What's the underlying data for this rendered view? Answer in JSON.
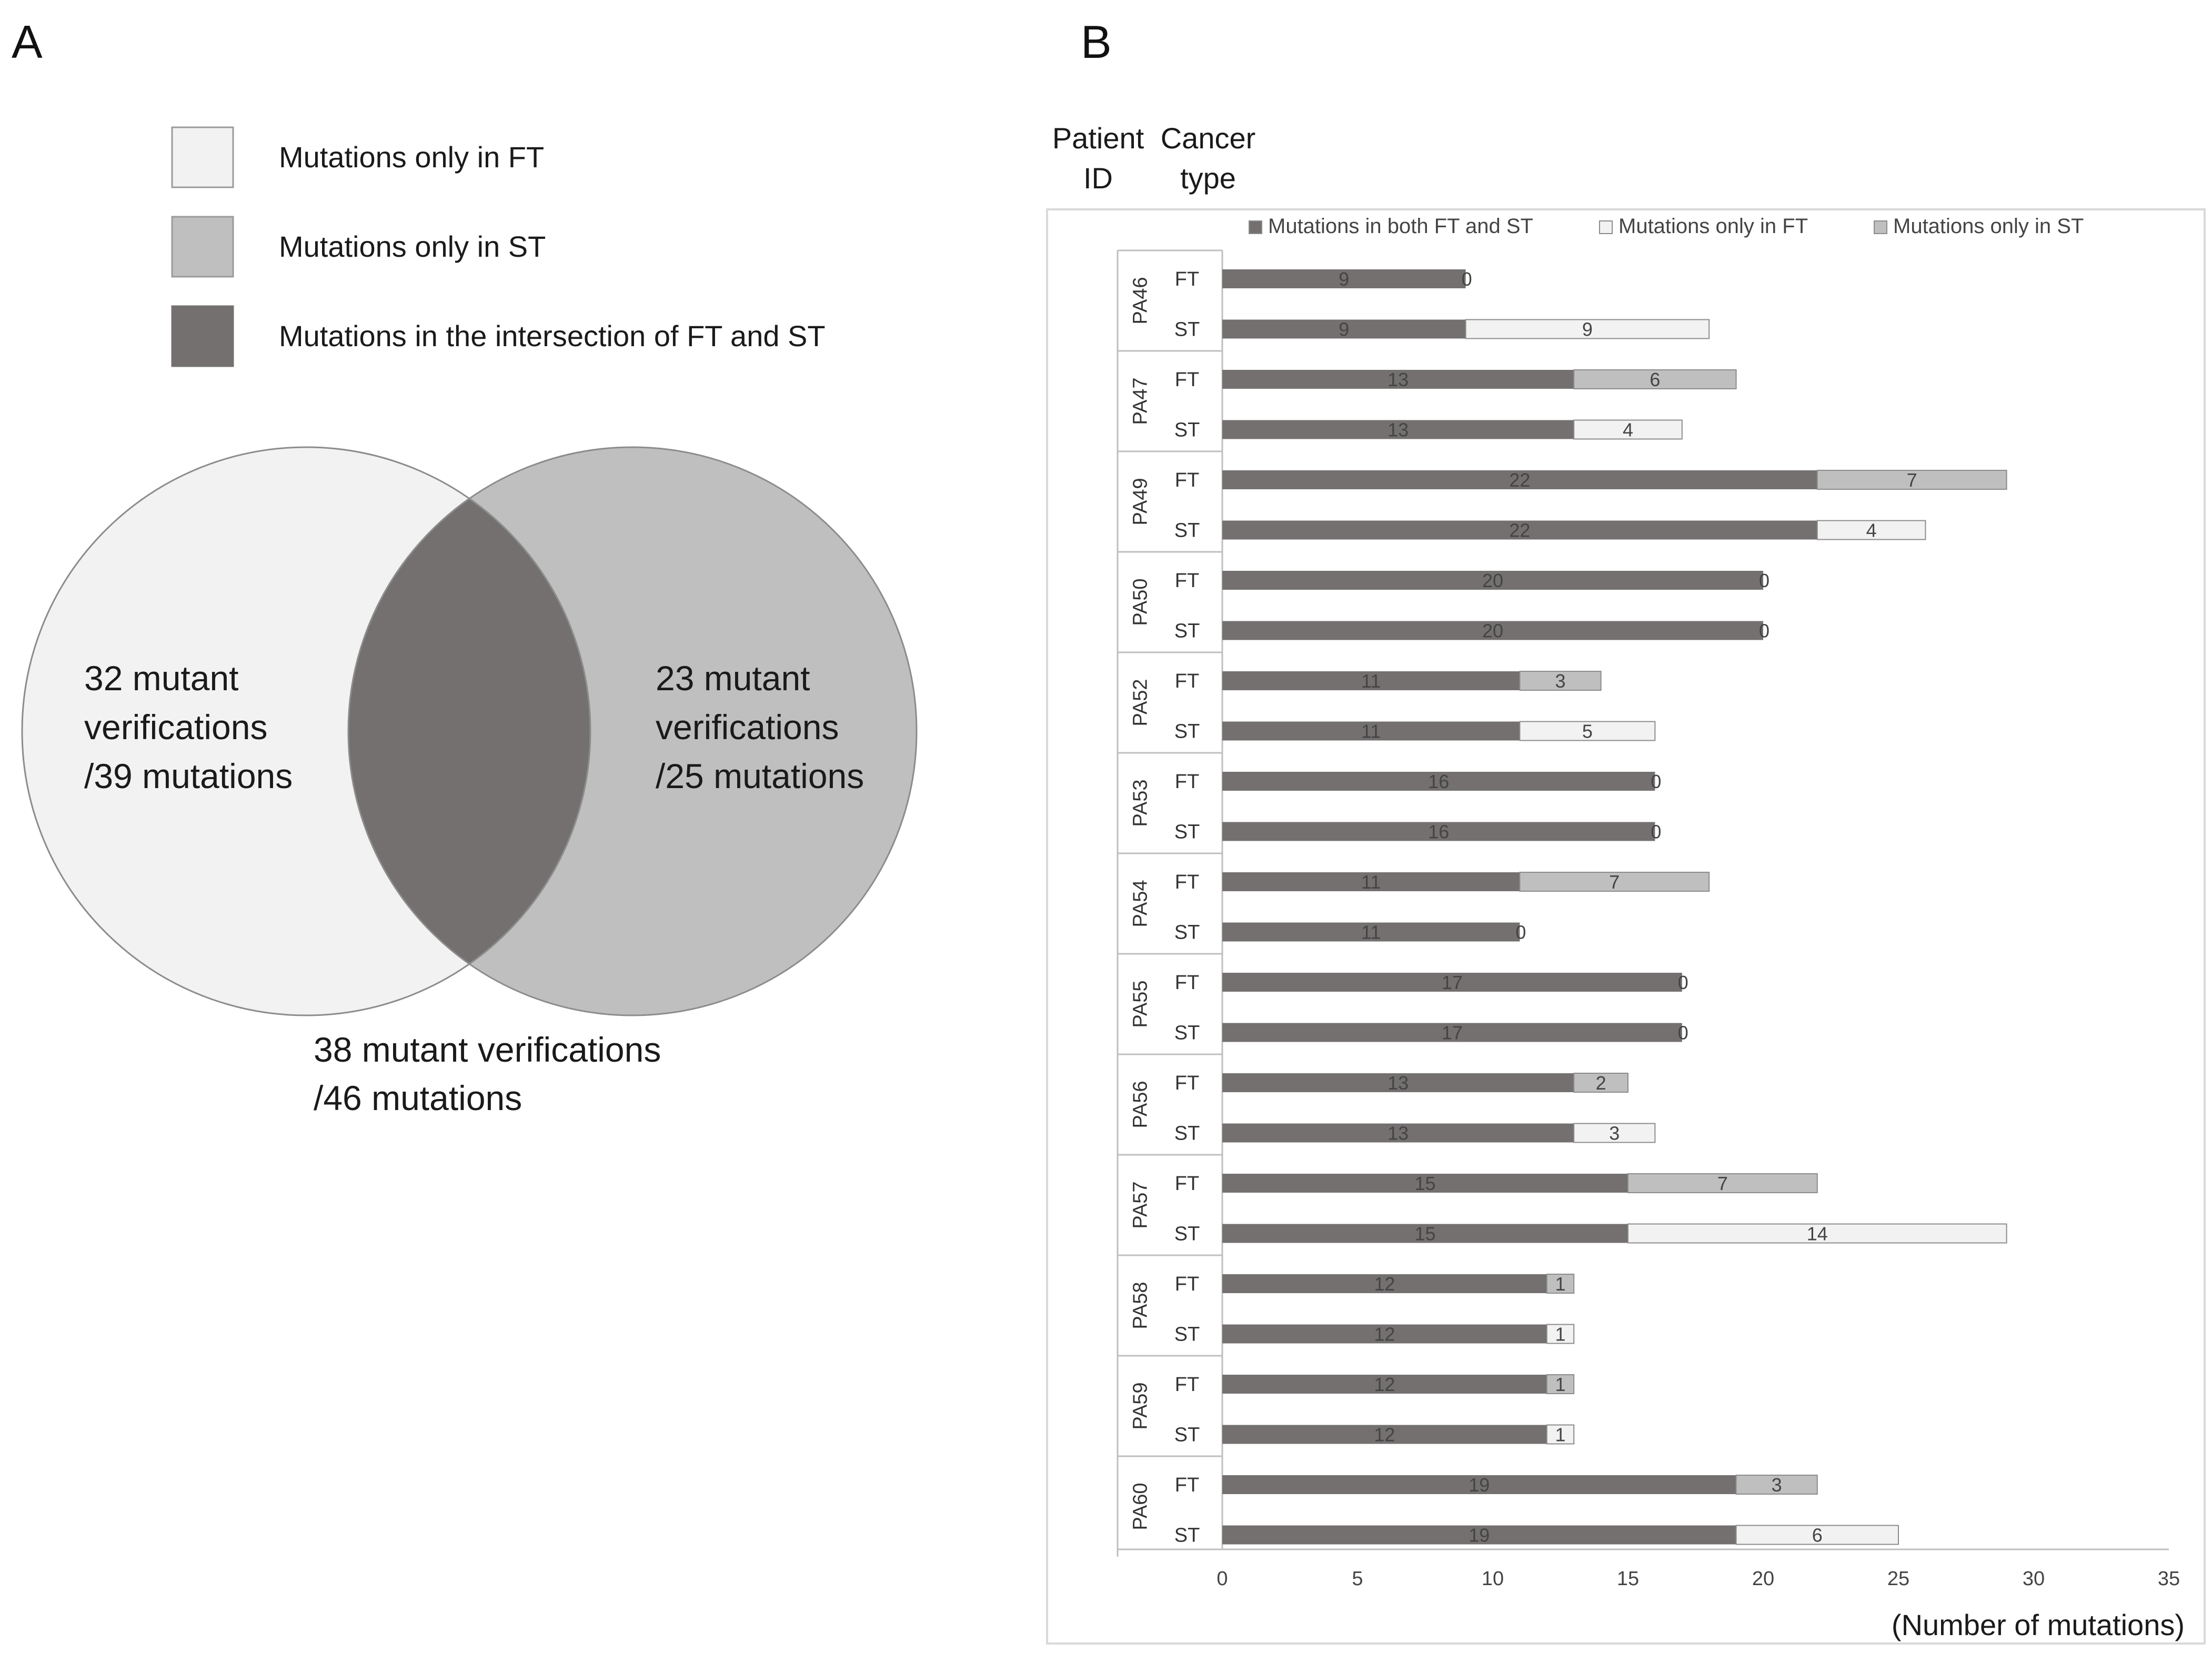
{
  "panel_a": {
    "letter": "A",
    "legend": [
      {
        "label": "Mutations only in FT",
        "color": "#f2f2f2"
      },
      {
        "label": "Mutations only in ST",
        "color": "#bfbfbf"
      },
      {
        "label": "Mutations in the intersection of FT and ST",
        "color": "#747070"
      }
    ],
    "venn": {
      "left_lines": [
        "32 mutant",
        "verifications",
        "/39 mutations"
      ],
      "right_lines": [
        "23 mutant",
        "verifications",
        "/25 mutations"
      ],
      "bottom_lines": [
        "38 mutant verifications",
        "/46 mutations"
      ],
      "colors": {
        "left": "#f2f2f2",
        "right": "#bfbfbf",
        "intersection": "#747070",
        "stroke": "#8c8c8c"
      }
    }
  },
  "panel_b": {
    "letter": "B",
    "header_patient": [
      "Patient",
      "ID"
    ],
    "header_cancer": [
      "Cancer",
      "type"
    ]
  },
  "chart_data": {
    "type": "bar",
    "orientation": "horizontal",
    "stacked": true,
    "legend_position": "top",
    "xlabel": "(Number of mutations)",
    "xlim": [
      0,
      35
    ],
    "xticks": [
      0,
      5,
      10,
      15,
      20,
      25,
      30,
      35
    ],
    "series": [
      {
        "name": "Mutations in both FT and ST",
        "color": "#747070"
      },
      {
        "name": "Mutations only in FT",
        "color": "#f2f2f2"
      },
      {
        "name": "Mutations only in ST",
        "color": "#bfbfbf"
      }
    ],
    "patients": [
      {
        "id": "PA46",
        "rows": [
          {
            "type": "FT",
            "both": 9,
            "only_ft": 0,
            "only_st": 0
          },
          {
            "type": "ST",
            "both": 9,
            "only_ft": 9,
            "only_st": 0
          }
        ]
      },
      {
        "id": "PA47",
        "rows": [
          {
            "type": "FT",
            "both": 13,
            "only_ft": 0,
            "only_st": 6
          },
          {
            "type": "ST",
            "both": 13,
            "only_ft": 4,
            "only_st": 0
          }
        ]
      },
      {
        "id": "PA49",
        "rows": [
          {
            "type": "FT",
            "both": 22,
            "only_ft": 0,
            "only_st": 7
          },
          {
            "type": "ST",
            "both": 22,
            "only_ft": 4,
            "only_st": 0
          }
        ]
      },
      {
        "id": "PA50",
        "rows": [
          {
            "type": "FT",
            "both": 20,
            "only_ft": 0,
            "only_st": 0
          },
          {
            "type": "ST",
            "both": 20,
            "only_ft": 0,
            "only_st": 0
          }
        ]
      },
      {
        "id": "PA52",
        "rows": [
          {
            "type": "FT",
            "both": 11,
            "only_ft": 0,
            "only_st": 3
          },
          {
            "type": "ST",
            "both": 11,
            "only_ft": 5,
            "only_st": 0
          }
        ]
      },
      {
        "id": "PA53",
        "rows": [
          {
            "type": "FT",
            "both": 16,
            "only_ft": 0,
            "only_st": 0
          },
          {
            "type": "ST",
            "both": 16,
            "only_ft": 0,
            "only_st": 0
          }
        ]
      },
      {
        "id": "PA54",
        "rows": [
          {
            "type": "FT",
            "both": 11,
            "only_ft": 0,
            "only_st": 7
          },
          {
            "type": "ST",
            "both": 11,
            "only_ft": 0,
            "only_st": 0
          }
        ]
      },
      {
        "id": "PA55",
        "rows": [
          {
            "type": "FT",
            "both": 17,
            "only_ft": 0,
            "only_st": 0
          },
          {
            "type": "ST",
            "both": 17,
            "only_ft": 0,
            "only_st": 0
          }
        ]
      },
      {
        "id": "PA56",
        "rows": [
          {
            "type": "FT",
            "both": 13,
            "only_ft": 0,
            "only_st": 2
          },
          {
            "type": "ST",
            "both": 13,
            "only_ft": 3,
            "only_st": 0
          }
        ]
      },
      {
        "id": "PA57",
        "rows": [
          {
            "type": "FT",
            "both": 15,
            "only_ft": 0,
            "only_st": 7
          },
          {
            "type": "ST",
            "both": 15,
            "only_ft": 14,
            "only_st": 0
          }
        ]
      },
      {
        "id": "PA58",
        "rows": [
          {
            "type": "FT",
            "both": 12,
            "only_ft": 0,
            "only_st": 1
          },
          {
            "type": "ST",
            "both": 12,
            "only_ft": 1,
            "only_st": 0
          }
        ]
      },
      {
        "id": "PA59",
        "rows": [
          {
            "type": "FT",
            "both": 12,
            "only_ft": 0,
            "only_st": 1
          },
          {
            "type": "ST",
            "both": 12,
            "only_ft": 1,
            "only_st": 0
          }
        ]
      },
      {
        "id": "PA60",
        "rows": [
          {
            "type": "FT",
            "both": 19,
            "only_ft": 0,
            "only_st": 3
          },
          {
            "type": "ST",
            "both": 19,
            "only_ft": 6,
            "only_st": 0
          }
        ]
      }
    ]
  }
}
